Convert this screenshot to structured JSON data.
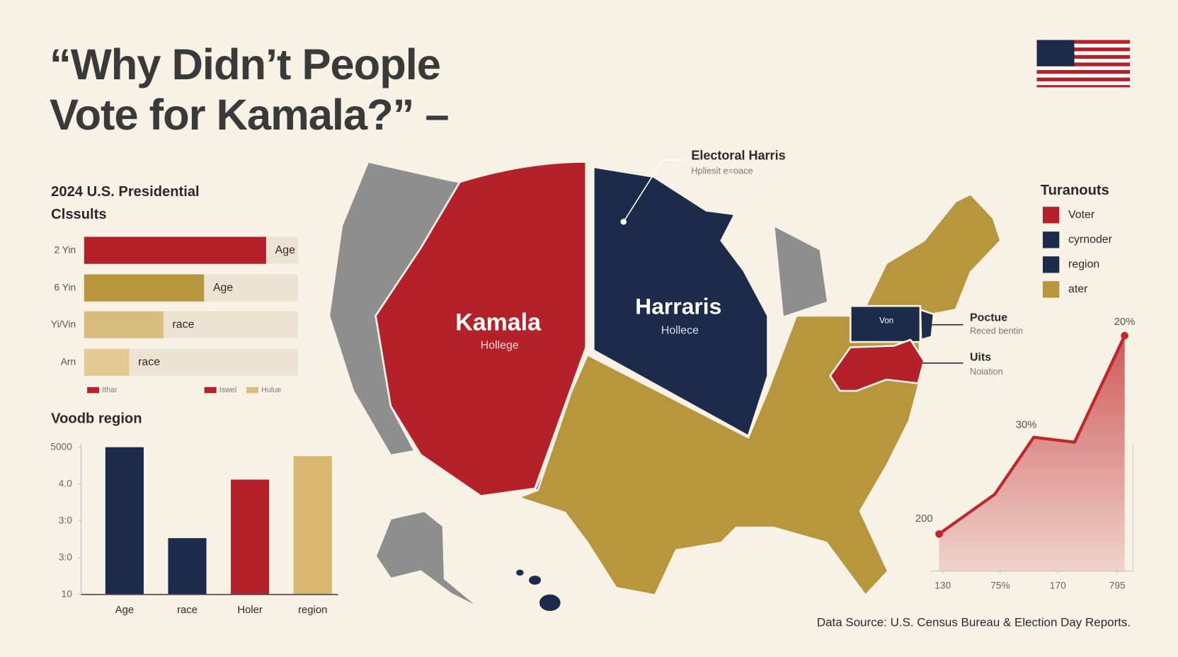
{
  "title": [
    "“Why Didn’t People",
    "Vote for Kamala?” –"
  ],
  "source": "Data Source: U.S. Census Bureau & Election Day Reports.",
  "map": {
    "labels": [
      {
        "title": "Kamala",
        "subtitle": "Hollege"
      },
      {
        "title": "Harraris",
        "subtitle": "Hollece"
      }
    ],
    "callouts": [
      {
        "title": "Electoral Harris",
        "subtitle": "Hpliesit e=oace"
      },
      {
        "title": "Poctue",
        "subtitle": "Reced bentin"
      },
      {
        "title": "Uits",
        "subtitle": "Noiation"
      }
    ],
    "state_labels": [
      "Von"
    ]
  },
  "legend": {
    "title": "Turanouts",
    "items": [
      {
        "name": "Voter",
        "color": "#b5212a"
      },
      {
        "name": "cyrnoder",
        "color": "#1c2b4a"
      },
      {
        "name": "region",
        "color": "#1c2b4a"
      },
      {
        "name": "ater",
        "color": "#b8963e"
      }
    ]
  },
  "chart_data": [
    {
      "type": "hbar",
      "title": [
        "2024 U.S. Presidential",
        "Clssults"
      ],
      "categories": [
        "2 Yin",
        "6 Yin",
        "Yi/Vin",
        "Arn"
      ],
      "bar_labels": [
        "Age",
        "Age",
        "race",
        "race"
      ],
      "values": [
        85,
        56,
        37,
        21
      ],
      "colors": [
        "#b5212a",
        "#b8963e",
        "#d8bd7e",
        "#e3c994"
      ],
      "xlim": [
        0,
        100
      ],
      "legend": [
        {
          "name": "Ithar",
          "color": "#b5212a"
        },
        {
          "name": "Iswel",
          "color": "#b5212a"
        },
        {
          "name": "Hulue",
          "color": "#d8bd7e"
        }
      ]
    },
    {
      "type": "bar",
      "title": "Voodb region",
      "categories": [
        "Age",
        "race",
        "Holer",
        "region"
      ],
      "values": [
        5,
        2.53,
        4.12,
        4.76
      ],
      "colors": [
        "#1c2b4a",
        "#1c2b4a",
        "#b5212a",
        "#d8b86e"
      ],
      "ylim": [
        1,
        5
      ],
      "yticks": [
        {
          "value": 1,
          "label": "10"
        },
        {
          "value": 2,
          "label": "3:0"
        },
        {
          "value": 3,
          "label": "3:0"
        },
        {
          "value": 4,
          "label": "4.0"
        },
        {
          "value": 5,
          "label": "5000"
        }
      ]
    },
    {
      "type": "area",
      "x": [
        0,
        0.3,
        0.51,
        0.73,
        1
      ],
      "values": [
        15,
        31,
        54,
        52,
        95
      ],
      "color": "#c0272d",
      "xlim": [
        0,
        1
      ],
      "ylim": [
        0,
        100
      ],
      "xticks": [
        {
          "value": 0.02,
          "label": "130"
        },
        {
          "value": 0.33,
          "label": "75%"
        },
        {
          "value": 0.64,
          "label": "170"
        },
        {
          "value": 0.96,
          "label": "795"
        }
      ],
      "annotations": [
        "200",
        "30%",
        "20%"
      ]
    }
  ]
}
